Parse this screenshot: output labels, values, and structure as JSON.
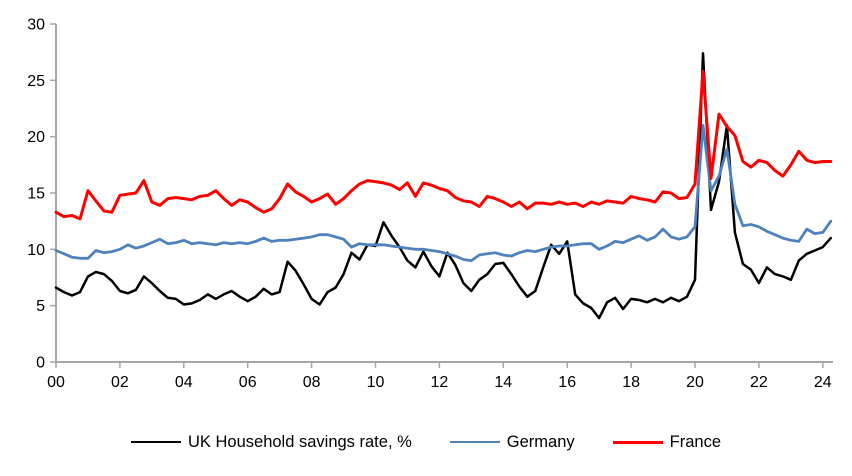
{
  "chart_data": {
    "type": "line",
    "title": "",
    "xlabel": "",
    "ylabel": "",
    "x_start": 2000,
    "x_step": 0.25,
    "x_axis": {
      "tick_labels": [
        "00",
        "02",
        "04",
        "06",
        "08",
        "10",
        "12",
        "14",
        "16",
        "18",
        "20",
        "22",
        "24"
      ],
      "tick_years": [
        2000,
        2002,
        2004,
        2006,
        2008,
        2010,
        2012,
        2014,
        2016,
        2018,
        2020,
        2022,
        2024
      ],
      "range": [
        2000,
        2024.35
      ]
    },
    "y_axis": {
      "tick_labels": [
        "0",
        "5",
        "10",
        "15",
        "20",
        "25",
        "30"
      ],
      "tick_values": [
        0,
        5,
        10,
        15,
        20,
        25,
        30
      ],
      "range": [
        0,
        30
      ]
    },
    "grid": false,
    "legend_position": "bottom",
    "series": [
      {
        "name": "UK Household savings rate, %",
        "color": "#000000",
        "stroke_width": 2.5,
        "values": [
          6.6,
          6.2,
          5.9,
          6.2,
          7.6,
          8.0,
          7.8,
          7.2,
          6.3,
          6.1,
          6.4,
          7.6,
          7.0,
          6.3,
          5.7,
          5.6,
          5.1,
          5.2,
          5.5,
          6.0,
          5.6,
          6.0,
          6.3,
          5.8,
          5.4,
          5.8,
          6.5,
          6.0,
          6.2,
          8.9,
          8.1,
          6.9,
          5.6,
          5.1,
          6.2,
          6.6,
          7.8,
          9.7,
          9.1,
          10.4,
          10.3,
          12.4,
          11.2,
          10.2,
          9.0,
          8.4,
          9.8,
          8.5,
          7.6,
          9.7,
          8.6,
          7.0,
          6.3,
          7.3,
          7.8,
          8.7,
          8.8,
          7.8,
          6.7,
          5.8,
          6.3,
          8.4,
          10.4,
          9.6,
          10.7,
          6.0,
          5.2,
          4.8,
          3.9,
          5.3,
          5.7,
          4.7,
          5.6,
          5.5,
          5.3,
          5.6,
          5.3,
          5.7,
          5.4,
          5.8,
          7.3,
          27.4,
          13.5,
          16.0,
          21.0,
          11.5,
          8.7,
          8.2,
          7.0,
          8.4,
          7.8,
          7.6,
          7.3,
          9.0,
          9.6,
          9.9,
          10.2,
          11.0
        ]
      },
      {
        "name": "Germany",
        "color": "#4F81BD",
        "stroke_width": 2.8,
        "values": [
          9.9,
          9.6,
          9.3,
          9.2,
          9.2,
          9.9,
          9.7,
          9.8,
          10.0,
          10.4,
          10.1,
          10.3,
          10.6,
          10.9,
          10.5,
          10.6,
          10.8,
          10.5,
          10.6,
          10.5,
          10.4,
          10.6,
          10.5,
          10.6,
          10.5,
          10.7,
          11.0,
          10.7,
          10.8,
          10.8,
          10.9,
          11.0,
          11.1,
          11.3,
          11.3,
          11.1,
          10.9,
          10.2,
          10.5,
          10.4,
          10.4,
          10.4,
          10.3,
          10.2,
          10.1,
          10.0,
          10.0,
          9.9,
          9.8,
          9.6,
          9.4,
          9.1,
          9.0,
          9.5,
          9.6,
          9.7,
          9.5,
          9.4,
          9.7,
          9.9,
          9.8,
          10.0,
          10.2,
          10.3,
          10.3,
          10.4,
          10.5,
          10.5,
          10.0,
          10.3,
          10.7,
          10.6,
          10.9,
          11.2,
          10.8,
          11.1,
          11.8,
          11.1,
          10.9,
          11.1,
          12.0,
          21.0,
          15.2,
          16.5,
          18.9,
          14.0,
          12.1,
          12.2,
          12.0,
          11.6,
          11.3,
          11.0,
          10.8,
          10.7,
          11.8,
          11.4,
          11.5,
          12.5
        ]
      },
      {
        "name": "France",
        "color": "#FF0000",
        "stroke_width": 3.0,
        "values": [
          13.3,
          12.9,
          13.0,
          12.7,
          15.2,
          14.3,
          13.4,
          13.3,
          14.8,
          14.9,
          15.0,
          16.1,
          14.2,
          13.9,
          14.5,
          14.6,
          14.5,
          14.4,
          14.7,
          14.8,
          15.2,
          14.5,
          13.9,
          14.4,
          14.2,
          13.7,
          13.3,
          13.6,
          14.5,
          15.8,
          15.1,
          14.7,
          14.2,
          14.5,
          14.9,
          14.0,
          14.5,
          15.2,
          15.8,
          16.1,
          16.0,
          15.9,
          15.7,
          15.3,
          15.9,
          14.7,
          15.9,
          15.7,
          15.4,
          15.2,
          14.6,
          14.3,
          14.2,
          13.8,
          14.7,
          14.5,
          14.2,
          13.8,
          14.2,
          13.6,
          14.1,
          14.1,
          14.0,
          14.2,
          14.0,
          14.1,
          13.8,
          14.2,
          14.0,
          14.3,
          14.2,
          14.1,
          14.7,
          14.5,
          14.4,
          14.2,
          15.1,
          15.0,
          14.5,
          14.6,
          15.8,
          25.8,
          16.3,
          22.0,
          20.9,
          20.1,
          17.8,
          17.3,
          17.9,
          17.7,
          17.0,
          16.5,
          17.5,
          18.7,
          17.9,
          17.7,
          17.8,
          17.8
        ]
      }
    ],
    "colors": {
      "axis": "#A6A6A6",
      "tick_text": "#000000",
      "background": "#FFFFFF"
    }
  }
}
